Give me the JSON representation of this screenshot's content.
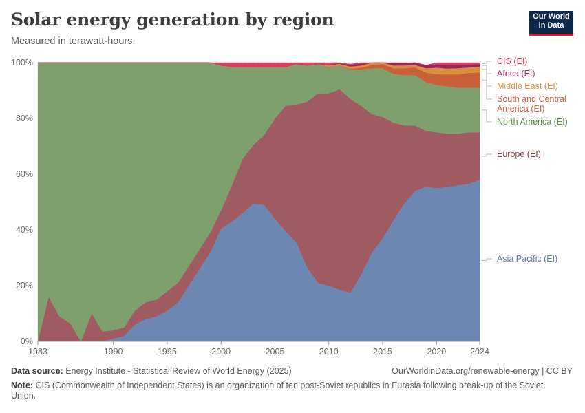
{
  "title": "Solar energy generation by region",
  "subtitle": "Measured in terawatt-hours.",
  "logo": {
    "line1": "Our World",
    "line2": "in Data"
  },
  "footer": {
    "source_label": "Data source:",
    "source_text": "Energy Institute - Statistical Review of World Energy (2025)",
    "url_text": "OurWorldinData.org/renewable-energy | CC BY",
    "note_label": "Note:",
    "note_text": "CIS (Commonwealth of Independent States) is an organization of ten post-Soviet republics in Eurasia following break-up of the Soviet Union."
  },
  "chart_data": {
    "type": "area",
    "stacked": true,
    "normalized": true,
    "title": "Solar energy generation by region",
    "ylabel": "",
    "xlabel": "",
    "ylim": [
      0,
      100
    ],
    "yticks": [
      0,
      20,
      40,
      60,
      80,
      100
    ],
    "ytick_labels": [
      "0%",
      "20%",
      "40%",
      "60%",
      "80%",
      "100%"
    ],
    "xticks": [
      1983,
      1990,
      1995,
      2000,
      2005,
      2010,
      2015,
      2020,
      2024
    ],
    "xtick_labels": [
      "1983",
      "1990",
      "1995",
      "2000",
      "2005",
      "2010",
      "2015",
      "2020",
      "2024"
    ],
    "grid": true,
    "x": [
      1983,
      1984,
      1985,
      1986,
      1987,
      1988,
      1989,
      1990,
      1991,
      1992,
      1993,
      1994,
      1995,
      1996,
      1997,
      1998,
      1999,
      2000,
      2001,
      2002,
      2003,
      2004,
      2005,
      2006,
      2007,
      2008,
      2009,
      2010,
      2011,
      2012,
      2013,
      2014,
      2015,
      2016,
      2017,
      2018,
      2019,
      2020,
      2021,
      2022,
      2023,
      2024
    ],
    "series": [
      {
        "name": "Asia Pacific (EI)",
        "color": "#6d87b3",
        "values": [
          0,
          0,
          0,
          0,
          0,
          0,
          0,
          1,
          2,
          6,
          8,
          9,
          11,
          14,
          20,
          26,
          32,
          40.5,
          43,
          46,
          49.5,
          49,
          44,
          39.5,
          35.5,
          26.5,
          21,
          20,
          18.5,
          17.5,
          24,
          32,
          37,
          43.5,
          49.5,
          54,
          55.5,
          55,
          55.5,
          56,
          56.5,
          58
        ]
      },
      {
        "name": "Europe (EI)",
        "color": "#a05a61",
        "values": [
          0,
          16,
          9,
          6.5,
          0,
          10,
          3.5,
          3,
          3,
          5,
          6,
          6,
          7,
          7,
          7,
          7,
          7,
          6.5,
          13,
          19.5,
          21,
          25,
          36,
          45,
          49.5,
          59.5,
          68,
          69,
          72,
          69.5,
          60.5,
          49.5,
          43.5,
          35,
          28,
          23.5,
          20,
          20,
          19,
          18.5,
          18.5,
          17
        ]
      },
      {
        "name": "North America (EI)",
        "color": "#7fa06d",
        "values": [
          100,
          84,
          91,
          93.5,
          100,
          90,
          96.5,
          96,
          95,
          89,
          86,
          85,
          82,
          79,
          73,
          67,
          61,
          52,
          42.5,
          33,
          28,
          24.5,
          18.5,
          14,
          14.5,
          13,
          10.5,
          9.5,
          8.5,
          10.5,
          13,
          16.5,
          17.5,
          17.5,
          18,
          18,
          17.5,
          17,
          17,
          16.5,
          16,
          16
        ]
      },
      {
        "name": "South and Central America (EI)",
        "color": "#c8603a",
        "values": [
          0,
          0,
          0,
          0,
          0,
          0,
          0,
          0,
          0,
          0,
          0,
          0,
          0,
          0,
          0,
          0,
          0,
          0,
          0,
          0,
          0,
          0,
          0,
          0,
          0,
          0,
          0,
          0,
          0,
          0.3,
          0.7,
          1.2,
          1.5,
          2,
          2.5,
          2.8,
          3.5,
          3.8,
          4.3,
          4.8,
          5.3,
          5.5
        ]
      },
      {
        "name": "Middle East (EI)",
        "color": "#d98f3d",
        "values": [
          0,
          0,
          0,
          0,
          0,
          0,
          0,
          0,
          0,
          0,
          0,
          0,
          0,
          0,
          0,
          0,
          0,
          0,
          0,
          0,
          0,
          0,
          0,
          0,
          0,
          0,
          0,
          0.5,
          0.6,
          0.8,
          0.8,
          0.8,
          0.9,
          1,
          1,
          0.9,
          1.5,
          2.4,
          2.1,
          2.2,
          2,
          2.1
        ]
      },
      {
        "name": "Africa (EI)",
        "color": "#9b2760",
        "values": [
          0,
          0,
          0,
          0,
          0,
          0,
          0,
          0,
          0,
          0,
          0,
          0,
          0,
          0,
          0,
          0,
          0,
          0,
          0,
          0,
          0,
          0,
          0,
          0,
          0,
          0,
          0,
          0.2,
          0.2,
          0.6,
          0.7,
          0.7,
          0.7,
          0.8,
          0.8,
          0.8,
          1.1,
          1.1,
          1.3,
          1.2,
          1,
          0.8
        ]
      },
      {
        "name": "CIS (EI)",
        "color": "#d7405e",
        "values": [
          0,
          0,
          0,
          0,
          0,
          0,
          0,
          0,
          0,
          0,
          0,
          0,
          0,
          0,
          0,
          0,
          0,
          1,
          1.5,
          1.5,
          1.5,
          1.5,
          1.5,
          1.5,
          0.5,
          1,
          0.5,
          0.8,
          0.2,
          0.3,
          0.3,
          0.3,
          0.4,
          0.2,
          0.2,
          0,
          0,
          0.7,
          0.8,
          0.8,
          0.7,
          0.6
        ]
      }
    ],
    "legend": [
      {
        "label": "CIS (EI)",
        "color": "#d7405e",
        "series": "CIS (EI)"
      },
      {
        "label": "Africa (EI)",
        "color": "#9b2760",
        "series": "Africa (EI)"
      },
      {
        "label": "Middle East (EI)",
        "color": "#d98f3d",
        "series": "Middle East (EI)"
      },
      {
        "label": "South and Central America (EI)",
        "lines": [
          "South and Central",
          "America (EI)"
        ],
        "color": "#c8603a",
        "series": "South and Central America (EI)"
      },
      {
        "label": "North America (EI)",
        "color": "#5f8a4a",
        "series": "North America (EI)"
      },
      {
        "label": "Europe (EI)",
        "color": "#8f3c45",
        "series": "Europe (EI)"
      },
      {
        "label": "Asia Pacific (EI)",
        "color": "#5b79a8",
        "series": "Asia Pacific (EI)"
      }
    ]
  }
}
